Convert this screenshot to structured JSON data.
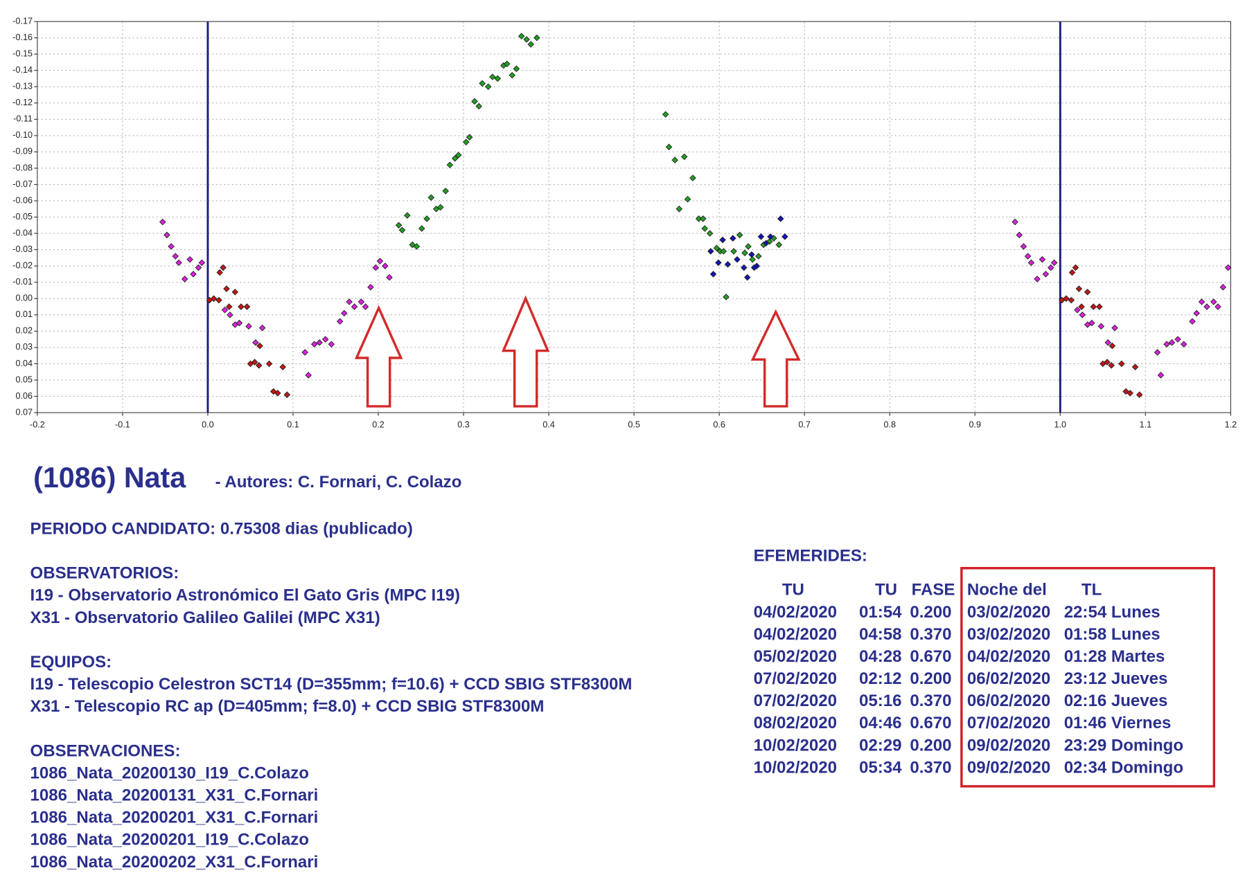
{
  "chart_data": {
    "type": "scatter",
    "xlim": [
      -0.2,
      1.2
    ],
    "ylim": [
      0.07,
      -0.17
    ],
    "grid": true,
    "xticks": [
      -0.2,
      -0.1,
      {
        "value": 0,
        "label": "0.0"
      },
      0.1,
      0.2,
      0.3,
      0.4,
      0.5,
      0.6,
      0.7,
      0.8,
      0.9,
      {
        "value": 1,
        "label": "1.0"
      },
      1.1,
      1.2
    ],
    "yticks": [
      -0.17,
      -0.16,
      -0.15,
      -0.14,
      -0.13,
      -0.12,
      -0.11,
      {
        "value": -0.1,
        "label": "-0.10"
      },
      -0.09,
      -0.08,
      -0.07,
      -0.06,
      -0.05,
      -0.04,
      -0.03,
      -0.02,
      -0.01,
      {
        "value": 0,
        "label": "0.00"
      },
      0.01,
      0.02,
      0.03,
      0.04,
      0.05,
      0.06,
      0.07
    ],
    "vlines": [
      0,
      1
    ],
    "vline_color": "#1a1a7a",
    "series": [
      {
        "color": "#e020e0",
        "x": [
          -0.053,
          -0.048,
          -0.043,
          -0.038,
          -0.034,
          -0.027,
          -0.021,
          -0.017,
          -0.011,
          -0.007,
          0.02,
          0.026,
          0.032,
          0.037,
          0.048,
          0.056,
          0.064,
          0.114,
          0.118,
          0.125,
          0.131,
          0.138,
          0.145,
          0.155,
          0.16,
          0.166,
          0.172,
          0.18,
          0.185,
          0.191,
          0.197,
          0.202,
          0.208,
          0.213,
          0.947,
          0.952,
          0.957,
          0.962,
          0.966,
          0.973,
          0.979,
          0.983,
          0.989,
          0.993,
          1.02,
          1.026,
          1.032,
          1.037,
          1.048,
          1.056,
          1.064,
          1.114,
          1.118,
          1.125,
          1.131,
          1.138,
          1.145,
          1.155,
          1.16,
          1.166,
          1.172,
          1.18,
          1.185,
          1.191,
          1.197
        ],
        "y": [
          -0.047,
          -0.039,
          -0.032,
          -0.026,
          -0.022,
          -0.012,
          -0.024,
          -0.015,
          -0.019,
          -0.022,
          0.007,
          0.01,
          0.016,
          0.015,
          0.017,
          0.027,
          0.018,
          0.033,
          0.047,
          0.028,
          0.027,
          0.025,
          0.028,
          0.014,
          0.009,
          0.002,
          0.005,
          0.002,
          0.005,
          -0.007,
          -0.019,
          -0.023,
          -0.02,
          -0.013,
          -0.047,
          -0.039,
          -0.032,
          -0.026,
          -0.022,
          -0.012,
          -0.024,
          -0.015,
          -0.019,
          -0.022,
          0.007,
          0.01,
          0.016,
          0.015,
          0.017,
          0.027,
          0.018,
          0.033,
          0.047,
          0.028,
          0.027,
          0.025,
          0.028,
          0.014,
          0.009,
          0.002,
          0.005,
          0.002,
          0.005,
          -0.007,
          -0.019
        ]
      },
      {
        "color": "#c81414",
        "x": [
          0.002,
          0.007,
          0.013,
          0.014,
          0.018,
          0.022,
          0.025,
          0.032,
          0.039,
          0.046,
          0.05,
          0.055,
          0.06,
          0.061,
          0.072,
          0.077,
          0.082,
          0.088,
          0.093,
          1.002,
          1.007,
          1.013,
          1.014,
          1.018,
          1.022,
          1.025,
          1.032,
          1.039,
          1.046,
          1.05,
          1.055,
          1.06,
          1.061,
          1.072,
          1.077,
          1.082,
          1.088,
          1.093
        ],
        "y": [
          0.001,
          0,
          0.001,
          -0.016,
          -0.019,
          -0.006,
          0.005,
          -0.004,
          0.005,
          0.005,
          0.04,
          0.039,
          0.041,
          0.029,
          0.04,
          0.057,
          0.058,
          0.042,
          0.059,
          0.001,
          0,
          0.001,
          -0.016,
          -0.019,
          -0.006,
          0.005,
          -0.004,
          0.005,
          0.005,
          0.04,
          0.039,
          0.041,
          0.029,
          0.04,
          0.057,
          0.058,
          0.042,
          0.059
        ]
      },
      {
        "color": "#22a022",
        "x": [
          0.224,
          0.228,
          0.234,
          0.24,
          0.245,
          0.251,
          0.257,
          0.262,
          0.268,
          0.273,
          0.279,
          0.284,
          0.29,
          0.294,
          0.303,
          0.307,
          0.313,
          0.318,
          0.322,
          0.329,
          0.334,
          0.34,
          0.347,
          0.351,
          0.357,
          0.362,
          0.368,
          0.374,
          0.379,
          0.386,
          0.537,
          0.541,
          0.548,
          0.559,
          0.569,
          0.563,
          0.553,
          0.576,
          0.581,
          0.583,
          0.589,
          0.597,
          0.601,
          0.605,
          0.617,
          0.624,
          0.63,
          0.634,
          0.639,
          0.646,
          0.652,
          0.659,
          0.664,
          0.67,
          0.608
        ],
        "y": [
          -0.045,
          -0.042,
          -0.051,
          -0.033,
          -0.032,
          -0.043,
          -0.049,
          -0.062,
          -0.055,
          -0.056,
          -0.066,
          -0.082,
          -0.086,
          -0.088,
          -0.096,
          -0.099,
          -0.121,
          -0.118,
          -0.132,
          -0.13,
          -0.136,
          -0.135,
          -0.143,
          -0.144,
          -0.137,
          -0.141,
          -0.161,
          -0.159,
          -0.156,
          -0.16,
          -0.113,
          -0.093,
          -0.085,
          -0.087,
          -0.074,
          -0.061,
          -0.055,
          -0.049,
          -0.049,
          -0.043,
          -0.04,
          -0.031,
          -0.029,
          -0.029,
          -0.029,
          -0.039,
          -0.028,
          -0.032,
          -0.024,
          -0.026,
          -0.033,
          -0.035,
          -0.037,
          -0.033,
          -0.001
        ]
      },
      {
        "color": "#1414b4",
        "x": [
          0.59,
          0.593,
          0.599,
          0.604,
          0.61,
          0.616,
          0.621,
          0.629,
          0.633,
          0.638,
          0.644,
          0.649,
          0.655,
          0.66,
          0.672,
          0.677,
          0.641
        ],
        "y": [
          -0.029,
          -0.015,
          -0.022,
          -0.036,
          -0.021,
          -0.037,
          -0.024,
          -0.019,
          -0.013,
          -0.027,
          -0.02,
          -0.038,
          -0.034,
          -0.038,
          -0.049,
          -0.038,
          -0.019
        ]
      }
    ]
  },
  "document": {
    "title": "(1086) Nata",
    "authors": "- Autores: C. Fornari, C. Colazo",
    "period": "PERIODO CANDIDATO: 0.75308 dias (publicado)",
    "sections": [
      {
        "heading": "OBSERVATORIOS:",
        "lines": [
          "I19 - Observatorio Astronómico El Gato Gris (MPC I19)",
          "X31 - Observatorio Galileo Galilei (MPC X31)"
        ]
      },
      {
        "heading": "EQUIPOS:",
        "lines": [
          "I19 - Telescopio Celestron SCT14 (D=355mm; f=10.6) + CCD SBIG STF8300M",
          "X31 - Telescopio RC ap (D=405mm; f=8.0) + CCD SBIG STF8300M"
        ]
      },
      {
        "heading": "OBSERVACIONES:",
        "lines": [
          "1086_Nata_20200130_I19_C.Colazo",
          "1086_Nata_20200131_X31_C.Fornari",
          "1086_Nata_20200201_X31_C.Fornari",
          "1086_Nata_20200201_I19_C.Colazo",
          "1086_Nata_20200202_X31_C.Fornari"
        ]
      }
    ],
    "efemerides": {
      "heading": "EFEMERIDES:",
      "columns": [
        "TU",
        "TU",
        "FASE",
        "Noche del",
        "TL"
      ],
      "rows": [
        [
          "04/02/2020",
          "01:54",
          "0.200",
          "03/02/2020",
          "22:54 Lunes"
        ],
        [
          "04/02/2020",
          "04:58",
          "0.370",
          "03/02/2020",
          "01:58 Lunes"
        ],
        [
          "05/02/2020",
          "04:28",
          "0.670",
          "04/02/2020",
          "01:28 Martes"
        ],
        [
          "07/02/2020",
          "02:12",
          "0.200",
          "06/02/2020",
          "23:12 Jueves"
        ],
        [
          "07/02/2020",
          "05:16",
          "0.370",
          "06/02/2020",
          "02:16 Jueves"
        ],
        [
          "08/02/2020",
          "04:46",
          "0.670",
          "07/02/2020",
          "01:46 Viernes"
        ],
        [
          "10/02/2020",
          "02:29",
          "0.200",
          "09/02/2020",
          "23:29 Domingo"
        ],
        [
          "10/02/2020",
          "05:34",
          "0.370",
          "09/02/2020",
          "02:34 Domingo"
        ]
      ]
    }
  }
}
